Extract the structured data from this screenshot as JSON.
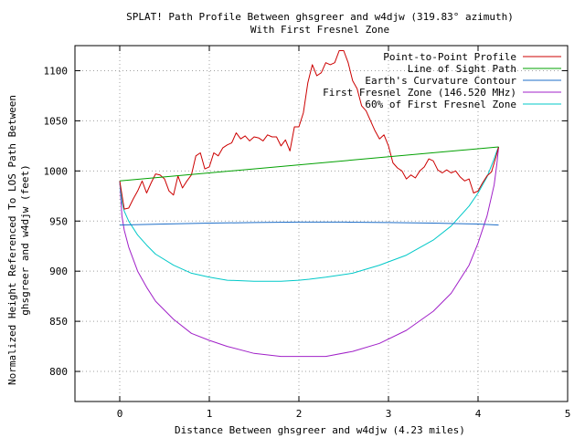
{
  "chart_data": {
    "type": "line",
    "title_line1": "SPLAT! Path Profile Between ghsgreer and w4djw (319.83° azimuth)",
    "title_line2": "With First Fresnel Zone",
    "xlabel": "Distance Between ghsgreer and w4djw (4.23 miles)",
    "ylabel_line1": "Normalized Height Referenced To LOS Path Between",
    "ylabel_line2": "ghsgreer and w4djw (feet)",
    "xlim": [
      -0.5,
      5
    ],
    "ylim": [
      770,
      1125
    ],
    "xticks": [
      0,
      1,
      2,
      3,
      4,
      5
    ],
    "yticks": [
      800,
      850,
      900,
      950,
      1000,
      1050,
      1100
    ],
    "legend_position": "top-right",
    "grid": true,
    "series": [
      {
        "name": "Point-to-Point Profile",
        "color": "#cc0000",
        "x": [
          0,
          0.05,
          0.1,
          0.15,
          0.2,
          0.25,
          0.3,
          0.35,
          0.4,
          0.45,
          0.5,
          0.55,
          0.6,
          0.65,
          0.7,
          0.75,
          0.8,
          0.85,
          0.9,
          0.95,
          1.0,
          1.05,
          1.1,
          1.15,
          1.2,
          1.25,
          1.3,
          1.35,
          1.4,
          1.45,
          1.5,
          1.55,
          1.6,
          1.65,
          1.7,
          1.75,
          1.8,
          1.85,
          1.9,
          1.95,
          2.0,
          2.05,
          2.1,
          2.15,
          2.2,
          2.25,
          2.3,
          2.35,
          2.4,
          2.45,
          2.5,
          2.55,
          2.6,
          2.65,
          2.7,
          2.75,
          2.8,
          2.85,
          2.9,
          2.95,
          3.0,
          3.05,
          3.1,
          3.15,
          3.2,
          3.25,
          3.3,
          3.35,
          3.4,
          3.45,
          3.5,
          3.55,
          3.6,
          3.65,
          3.7,
          3.75,
          3.8,
          3.85,
          3.9,
          3.95,
          4.0,
          4.05,
          4.1,
          4.15,
          4.2,
          4.23
        ],
        "values": [
          990,
          962,
          963,
          972,
          980,
          990,
          978,
          988,
          997,
          996,
          992,
          980,
          976,
          995,
          983,
          990,
          996,
          1015,
          1018,
          1002,
          1004,
          1018,
          1015,
          1023,
          1026,
          1028,
          1038,
          1032,
          1035,
          1030,
          1034,
          1033,
          1030,
          1036,
          1034,
          1034,
          1025,
          1031,
          1020,
          1044,
          1044,
          1058,
          1088,
          1106,
          1095,
          1098,
          1108,
          1106,
          1108,
          1120,
          1120,
          1108,
          1090,
          1082,
          1065,
          1060,
          1050,
          1040,
          1032,
          1036,
          1025,
          1008,
          1003,
          1000,
          992,
          996,
          993,
          1000,
          1004,
          1012,
          1010,
          1001,
          998,
          1001,
          998,
          1000,
          994,
          990,
          992,
          978,
          980,
          988,
          995,
          999,
          1014,
          1024
        ]
      },
      {
        "name": "Line of Sight Path",
        "color": "#00a000",
        "x": [
          0,
          4.23
        ],
        "values": [
          990,
          1024
        ]
      },
      {
        "name": "Earth's Curvature Contour",
        "color": "#1e6ec8",
        "x": [
          0,
          0.5,
          1.0,
          1.5,
          2.0,
          2.5,
          3.0,
          3.5,
          4.0,
          4.23
        ],
        "values": [
          946,
          947,
          948,
          948.5,
          949,
          949,
          948.5,
          948,
          947,
          946
        ]
      },
      {
        "name": "First Fresnel Zone (146.520 MHz)",
        "color": "#a020c8",
        "x": [
          0,
          0.025,
          0.05,
          0.1,
          0.2,
          0.3,
          0.4,
          0.6,
          0.8,
          1.0,
          1.2,
          1.5,
          1.8,
          2.0,
          2.115,
          2.3,
          2.6,
          2.9,
          3.2,
          3.5,
          3.7,
          3.9,
          4.0,
          4.1,
          4.18,
          4.21,
          4.23
        ],
        "values": [
          990,
          955,
          941,
          924,
          900,
          884,
          870,
          852,
          838,
          831,
          825,
          818,
          815,
          815,
          815,
          815,
          820,
          828,
          841,
          860,
          878,
          906,
          928,
          955,
          986,
          1007,
          1024
        ]
      },
      {
        "name": "60% of First Fresnel Zone",
        "color": "#00c8c8",
        "x": [
          0,
          0.025,
          0.05,
          0.1,
          0.2,
          0.3,
          0.4,
          0.6,
          0.8,
          1.0,
          1.2,
          1.5,
          1.8,
          2.0,
          2.115,
          2.3,
          2.6,
          2.9,
          3.2,
          3.5,
          3.7,
          3.9,
          4.0,
          4.1,
          4.18,
          4.21,
          4.23
        ],
        "values": [
          990,
          969,
          960,
          950,
          936,
          926,
          917,
          906,
          898,
          894,
          891,
          890,
          890,
          891,
          892,
          894,
          898,
          906,
          916,
          931,
          945,
          965,
          978,
          994,
          1012,
          1020,
          1024
        ]
      }
    ]
  }
}
